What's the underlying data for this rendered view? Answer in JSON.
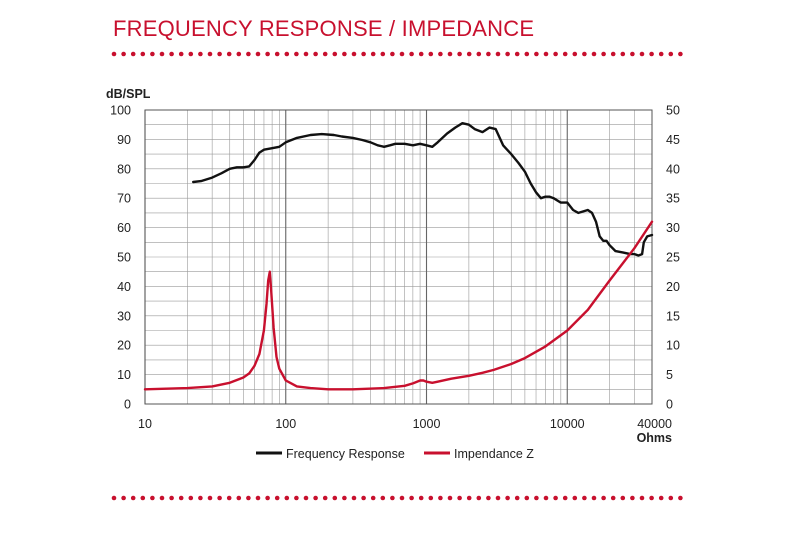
{
  "header": {
    "title": "FREQUENCY RESPONSE / IMPEDANCE"
  },
  "colors": {
    "accent": "#c8102e",
    "response": "#111111",
    "grid": "#9a9a9a"
  },
  "chart_data": {
    "type": "line",
    "title": "",
    "xlabel": "Ohms",
    "ylabel": "dB/SPL",
    "xscale": "log",
    "xlim": [
      10,
      40000
    ],
    "ylim": [
      0,
      100
    ],
    "y2lim": [
      0,
      50
    ],
    "x_ticks": [
      10,
      100,
      1000,
      10000,
      40000
    ],
    "x_tick_labels": [
      "10",
      "100",
      "1000",
      "10000",
      "40000"
    ],
    "y_ticks": [
      0,
      10,
      20,
      30,
      40,
      50,
      60,
      70,
      80,
      90,
      100
    ],
    "y2_ticks": [
      0,
      5,
      10,
      15,
      20,
      25,
      30,
      35,
      40,
      45,
      50
    ],
    "grid": true,
    "legend": "bottom",
    "series": [
      {
        "name": "Frequency Response",
        "axis": "left",
        "color": "#111111",
        "points": [
          [
            22,
            75.5
          ],
          [
            25,
            75.8
          ],
          [
            30,
            77
          ],
          [
            35,
            78.5
          ],
          [
            40,
            80
          ],
          [
            45,
            80.5
          ],
          [
            50,
            80.5
          ],
          [
            55,
            80.8
          ],
          [
            60,
            83
          ],
          [
            65,
            85.5
          ],
          [
            70,
            86.5
          ],
          [
            80,
            87
          ],
          [
            90,
            87.5
          ],
          [
            100,
            89
          ],
          [
            120,
            90.5
          ],
          [
            150,
            91.5
          ],
          [
            180,
            91.8
          ],
          [
            220,
            91.5
          ],
          [
            250,
            91
          ],
          [
            300,
            90.5
          ],
          [
            350,
            89.8
          ],
          [
            400,
            89
          ],
          [
            450,
            88
          ],
          [
            500,
            87.5
          ],
          [
            550,
            88
          ],
          [
            600,
            88.5
          ],
          [
            700,
            88.5
          ],
          [
            800,
            88
          ],
          [
            900,
            88.5
          ],
          [
            1000,
            88
          ],
          [
            1100,
            87.5
          ],
          [
            1200,
            89
          ],
          [
            1400,
            92
          ],
          [
            1600,
            94
          ],
          [
            1800,
            95.5
          ],
          [
            2000,
            95
          ],
          [
            2200,
            93.5
          ],
          [
            2500,
            92.5
          ],
          [
            2800,
            94
          ],
          [
            3100,
            93.5
          ],
          [
            3500,
            88
          ],
          [
            4000,
            85
          ],
          [
            4500,
            82
          ],
          [
            5000,
            79
          ],
          [
            5500,
            75
          ],
          [
            6000,
            72
          ],
          [
            6500,
            70
          ],
          [
            7000,
            70.5
          ],
          [
            7500,
            70.5
          ],
          [
            8000,
            70
          ],
          [
            9000,
            68.5
          ],
          [
            10000,
            68.5
          ],
          [
            11000,
            66
          ],
          [
            12000,
            65
          ],
          [
            13000,
            65.5
          ],
          [
            14000,
            66
          ],
          [
            15000,
            65
          ],
          [
            16000,
            62
          ],
          [
            17000,
            57
          ],
          [
            18000,
            55.5
          ],
          [
            19000,
            55.5
          ],
          [
            20000,
            54
          ],
          [
            22000,
            52
          ],
          [
            25000,
            51.5
          ],
          [
            28000,
            51
          ],
          [
            30000,
            51
          ],
          [
            32000,
            50.5
          ],
          [
            34000,
            51
          ],
          [
            35000,
            55
          ],
          [
            37000,
            57
          ],
          [
            40000,
            57.5
          ]
        ]
      },
      {
        "name": "Impendance Z",
        "axis": "right",
        "color": "#c8102e",
        "points": [
          [
            10,
            2.5
          ],
          [
            20,
            2.7
          ],
          [
            30,
            3
          ],
          [
            40,
            3.6
          ],
          [
            50,
            4.5
          ],
          [
            55,
            5.2
          ],
          [
            60,
            6.5
          ],
          [
            65,
            8.5
          ],
          [
            70,
            12.5
          ],
          [
            73,
            17
          ],
          [
            75,
            21
          ],
          [
            77,
            22.5
          ],
          [
            79,
            19
          ],
          [
            82,
            13
          ],
          [
            86,
            8
          ],
          [
            90,
            6
          ],
          [
            100,
            4
          ],
          [
            120,
            3
          ],
          [
            150,
            2.7
          ],
          [
            200,
            2.5
          ],
          [
            300,
            2.5
          ],
          [
            500,
            2.7
          ],
          [
            700,
            3.1
          ],
          [
            800,
            3.5
          ],
          [
            900,
            4
          ],
          [
            950,
            4
          ],
          [
            1000,
            3.8
          ],
          [
            1100,
            3.6
          ],
          [
            1200,
            3.8
          ],
          [
            1500,
            4.3
          ],
          [
            2000,
            4.8
          ],
          [
            2500,
            5.3
          ],
          [
            3000,
            5.8
          ],
          [
            4000,
            6.8
          ],
          [
            5000,
            7.8
          ],
          [
            7000,
            9.8
          ],
          [
            10000,
            12.5
          ],
          [
            14000,
            16
          ],
          [
            20000,
            21
          ],
          [
            30000,
            26.5
          ],
          [
            40000,
            31
          ]
        ]
      }
    ]
  }
}
